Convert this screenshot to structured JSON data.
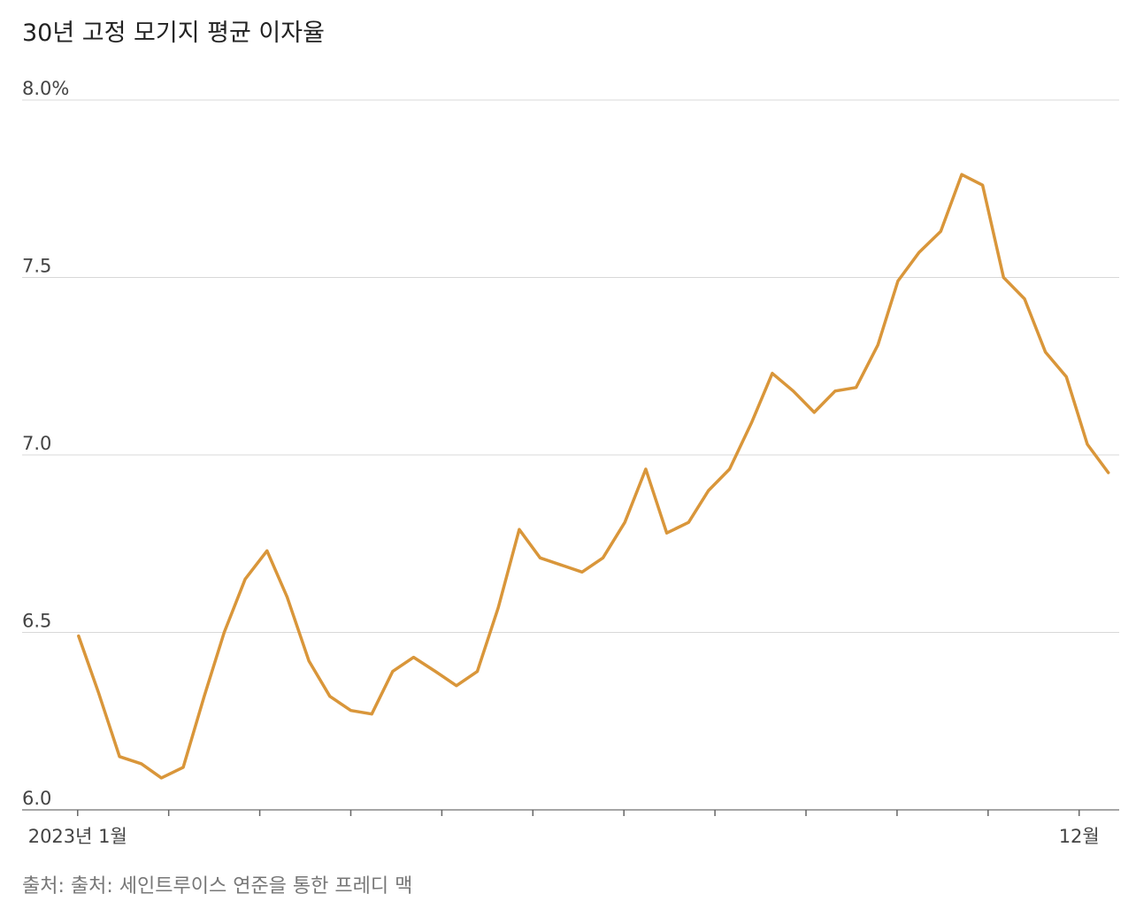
{
  "chart_data": {
    "type": "line",
    "title": "30년 고정 모기지 평균 이자율",
    "source": "출처: 출처: 세인트루이스 연준을 통한 프레디 맥",
    "x": [
      0.01,
      0.23,
      0.46,
      0.7,
      0.92,
      1.16,
      1.39,
      1.61,
      1.84,
      2.08,
      2.3,
      2.54,
      2.77,
      3.0,
      3.23,
      3.46,
      3.69,
      3.93,
      4.16,
      4.39,
      4.62,
      4.85,
      5.08,
      5.31,
      5.54,
      5.77,
      6.01,
      6.24,
      6.47,
      6.71,
      6.93,
      7.16,
      7.4,
      7.63,
      7.86,
      8.09,
      8.32,
      8.55,
      8.79,
      9.01,
      9.24,
      9.48,
      9.71,
      9.94,
      10.17,
      10.4,
      10.63,
      10.86,
      11.09,
      11.32
    ],
    "values": [
      6.49,
      6.33,
      6.15,
      6.13,
      6.09,
      6.12,
      6.32,
      6.5,
      6.65,
      6.73,
      6.6,
      6.42,
      6.32,
      6.28,
      6.27,
      6.39,
      6.43,
      6.39,
      6.35,
      6.39,
      6.57,
      6.79,
      6.71,
      6.69,
      6.67,
      6.71,
      6.81,
      6.96,
      6.78,
      6.81,
      6.9,
      6.96,
      7.09,
      7.23,
      7.18,
      7.12,
      7.18,
      7.19,
      7.31,
      7.49,
      7.57,
      7.63,
      7.79,
      7.76,
      7.5,
      7.44,
      7.29,
      7.22,
      7.03,
      6.95
    ],
    "color": "#d9963a",
    "xlim": [
      -0.61,
      11.44
    ],
    "xticks": [
      0,
      1,
      2,
      3,
      4,
      5,
      6,
      7,
      8,
      9,
      10,
      11
    ],
    "xtick_labels": [
      {
        "value": 0,
        "label": "2023년 1월"
      },
      {
        "value": 11,
        "label": "12월"
      }
    ],
    "ylim": [
      6.0,
      8.0
    ],
    "yticks": [
      {
        "value": 6,
        "label": "6.0"
      },
      {
        "value": 6.5,
        "label": "6.5"
      },
      {
        "value": 7,
        "label": "7.0"
      },
      {
        "value": 7.5,
        "label": "7.5"
      },
      {
        "value": 8,
        "label": "8.0%"
      }
    ],
    "grid": true
  }
}
